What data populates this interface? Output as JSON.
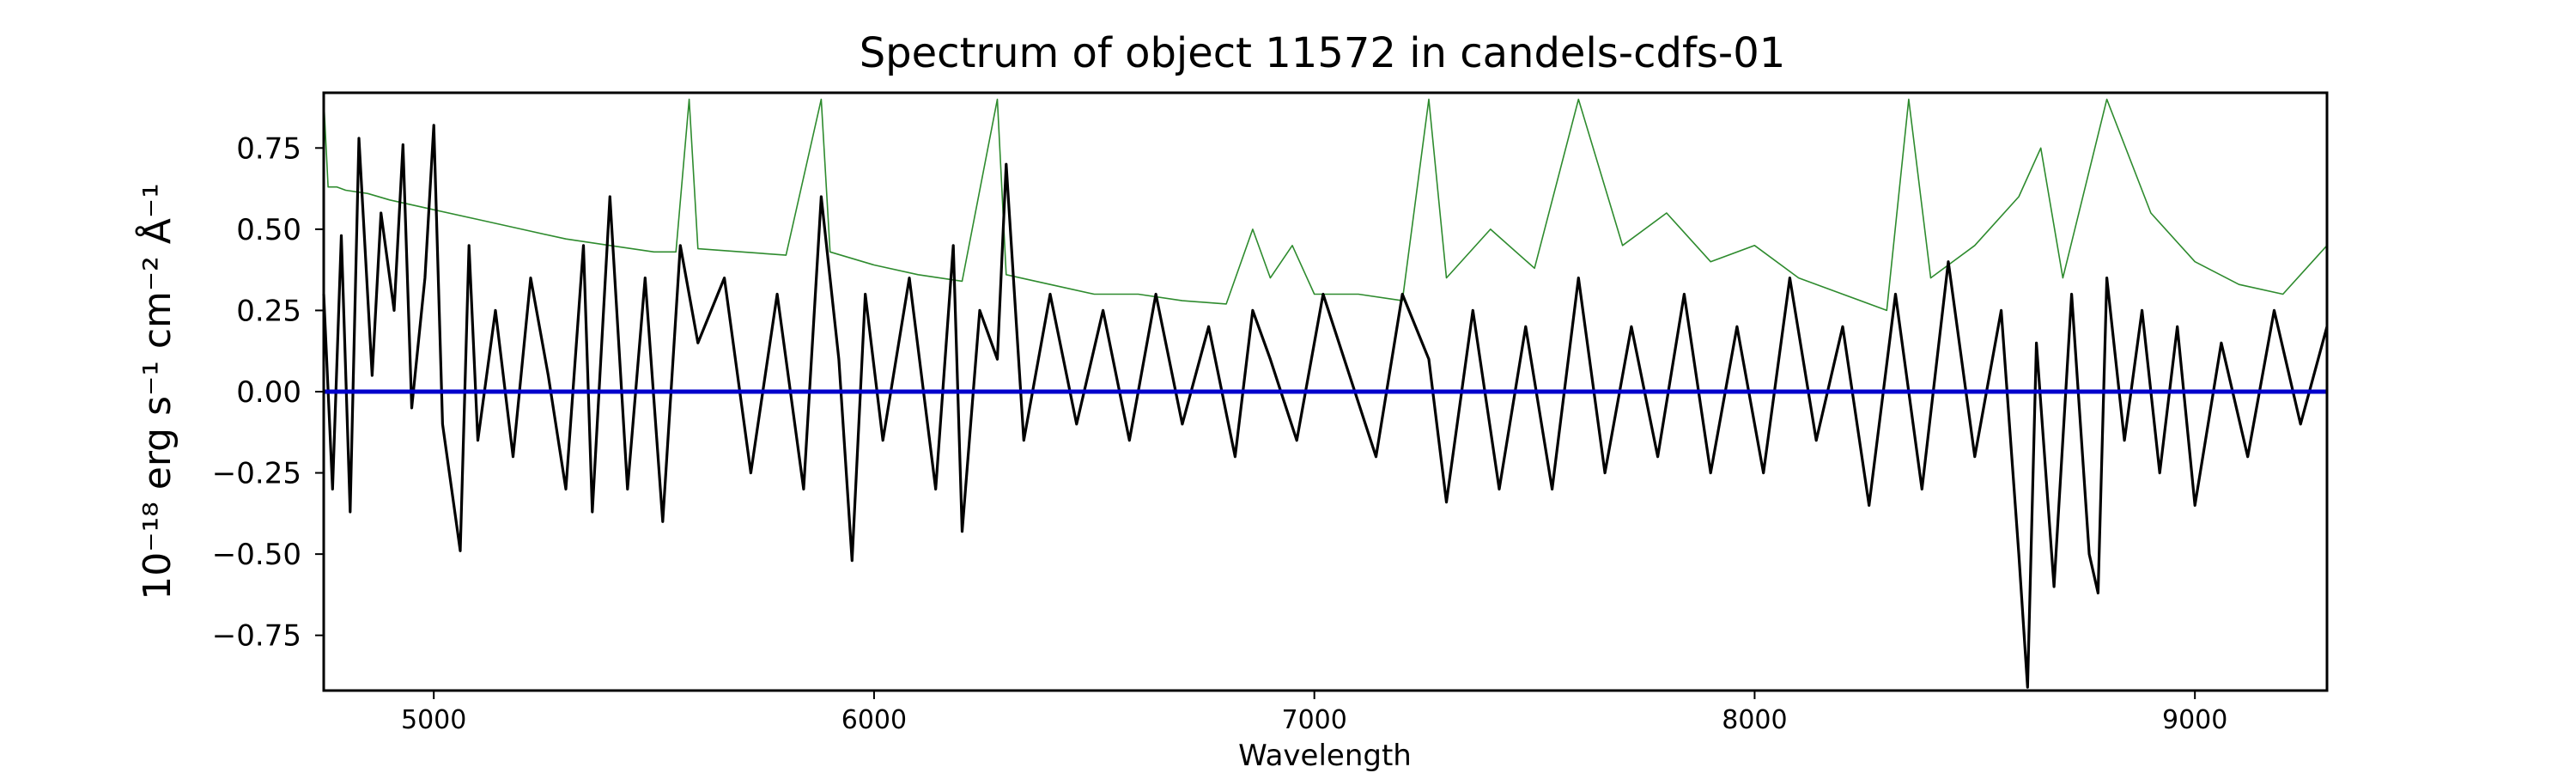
{
  "chart_data": {
    "type": "line",
    "title": "Spectrum of object 11572 in candels-cdfs-01",
    "xlabel": "Wavelength",
    "ylabel": "10⁻¹⁸ erg s⁻¹ cm⁻² Å⁻¹",
    "xlim": [
      4750,
      9300
    ],
    "ylim": [
      -0.92,
      0.92
    ],
    "grid": false,
    "x_ticks": [
      {
        "value": 5000,
        "label": "5000"
      },
      {
        "value": 6000,
        "label": "6000"
      },
      {
        "value": 7000,
        "label": "7000"
      },
      {
        "value": 8000,
        "label": "8000"
      },
      {
        "value": 9000,
        "label": "9000"
      }
    ],
    "y_ticks": [
      {
        "value": 0.75,
        "label": "0.75"
      },
      {
        "value": 0.5,
        "label": "0.50"
      },
      {
        "value": 0.25,
        "label": "0.25"
      },
      {
        "value": 0.0,
        "label": "0.00"
      },
      {
        "value": -0.25,
        "label": "−0.25"
      },
      {
        "value": -0.5,
        "label": "−0.50"
      },
      {
        "value": -0.75,
        "label": "−0.75"
      }
    ],
    "series": [
      {
        "role": "error",
        "color": "#2e8b2e",
        "x": [
          4750,
          4760,
          4780,
          4800,
          4850,
          4900,
          5000,
          5100,
          5200,
          5300,
          5400,
          5500,
          5550,
          5580,
          5600,
          5700,
          5800,
          5880,
          5900,
          6000,
          6100,
          6200,
          6280,
          6300,
          6400,
          6500,
          6600,
          6700,
          6800,
          6860,
          6900,
          6950,
          7000,
          7100,
          7200,
          7260,
          7300,
          7400,
          7500,
          7600,
          7700,
          7800,
          7900,
          8000,
          8100,
          8200,
          8300,
          8350,
          8400,
          8500,
          8600,
          8650,
          8700,
          8800,
          8900,
          9000,
          9100,
          9200,
          9300
        ],
        "values": [
          0.9,
          0.63,
          0.63,
          0.62,
          0.61,
          0.59,
          0.56,
          0.53,
          0.5,
          0.47,
          0.45,
          0.43,
          0.43,
          0.9,
          0.44,
          0.43,
          0.42,
          0.9,
          0.43,
          0.39,
          0.36,
          0.34,
          0.9,
          0.36,
          0.33,
          0.3,
          0.3,
          0.28,
          0.27,
          0.5,
          0.35,
          0.45,
          0.3,
          0.3,
          0.28,
          0.9,
          0.35,
          0.5,
          0.38,
          0.9,
          0.45,
          0.55,
          0.4,
          0.45,
          0.35,
          0.3,
          0.25,
          0.9,
          0.35,
          0.45,
          0.6,
          0.75,
          0.35,
          0.9,
          0.55,
          0.4,
          0.33,
          0.3,
          0.45
        ]
      },
      {
        "role": "flux",
        "color": "#000000",
        "x": [
          4750,
          4770,
          4790,
          4810,
          4830,
          4860,
          4880,
          4910,
          4930,
          4950,
          4980,
          5000,
          5020,
          5060,
          5080,
          5100,
          5140,
          5180,
          5220,
          5260,
          5300,
          5340,
          5360,
          5400,
          5440,
          5480,
          5520,
          5560,
          5600,
          5660,
          5720,
          5780,
          5840,
          5880,
          5920,
          5950,
          5980,
          6020,
          6080,
          6140,
          6180,
          6200,
          6240,
          6280,
          6300,
          6340,
          6400,
          6460,
          6520,
          6580,
          6640,
          6700,
          6760,
          6820,
          6860,
          6900,
          6960,
          7020,
          7080,
          7140,
          7200,
          7260,
          7300,
          7360,
          7420,
          7480,
          7540,
          7600,
          7660,
          7720,
          7780,
          7840,
          7900,
          7960,
          8020,
          8080,
          8140,
          8200,
          8260,
          8320,
          8380,
          8440,
          8500,
          8560,
          8600,
          8620,
          8640,
          8680,
          8720,
          8760,
          8780,
          8800,
          8840,
          8880,
          8920,
          8960,
          9000,
          9060,
          9120,
          9180,
          9240,
          9300
        ],
        "values": [
          0.3,
          -0.3,
          0.48,
          -0.37,
          0.78,
          0.05,
          0.55,
          0.25,
          0.76,
          -0.05,
          0.35,
          0.82,
          -0.1,
          -0.49,
          0.45,
          -0.15,
          0.25,
          -0.2,
          0.35,
          0.05,
          -0.3,
          0.45,
          -0.37,
          0.6,
          -0.3,
          0.35,
          -0.4,
          0.45,
          0.15,
          0.35,
          -0.25,
          0.3,
          -0.3,
          0.6,
          0.1,
          -0.52,
          0.3,
          -0.15,
          0.35,
          -0.3,
          0.45,
          -0.43,
          0.25,
          0.1,
          0.7,
          -0.15,
          0.3,
          -0.1,
          0.25,
          -0.15,
          0.3,
          -0.1,
          0.2,
          -0.2,
          0.25,
          0.1,
          -0.15,
          0.3,
          0.05,
          -0.2,
          0.3,
          0.1,
          -0.34,
          0.25,
          -0.3,
          0.2,
          -0.3,
          0.35,
          -0.25,
          0.2,
          -0.2,
          0.3,
          -0.25,
          0.2,
          -0.25,
          0.35,
          -0.15,
          0.2,
          -0.35,
          0.3,
          -0.3,
          0.4,
          -0.2,
          0.25,
          -0.5,
          -0.91,
          0.15,
          -0.6,
          0.3,
          -0.5,
          -0.62,
          0.35,
          -0.15,
          0.25,
          -0.25,
          0.2,
          -0.35,
          0.15,
          -0.2,
          0.25,
          -0.1,
          0.2
        ]
      },
      {
        "role": "model",
        "color": "#0000cc",
        "x": [
          4750,
          9300
        ],
        "values": [
          0.0,
          0.0
        ]
      }
    ]
  }
}
